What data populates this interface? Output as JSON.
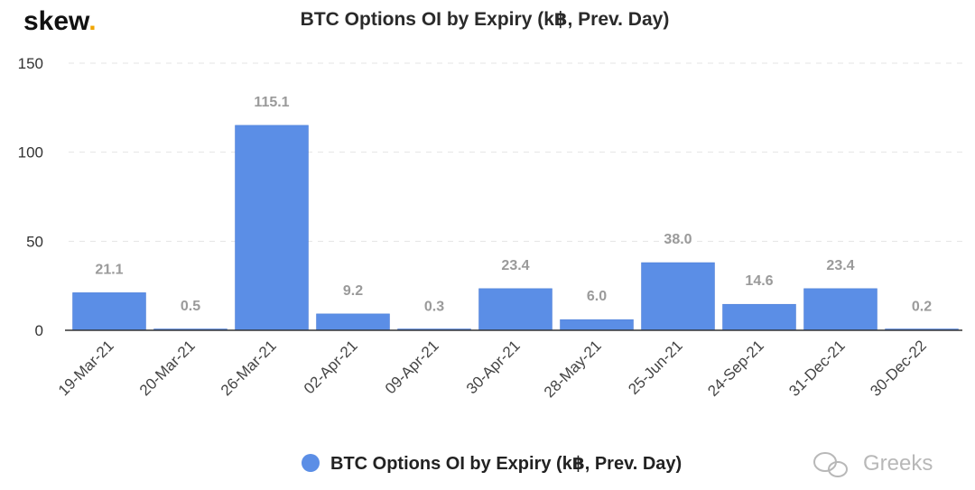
{
  "brand": {
    "logo_text": "skew",
    "logo_dot": ".",
    "logo_dot_color": "#f0a500"
  },
  "watermark": {
    "text": "Greeks",
    "icon": "wechat-icon"
  },
  "colors": {
    "bar": "#5b8ee6",
    "bar_dark": "#4a7bd4"
  },
  "chart_data": {
    "type": "bar",
    "title": "BTC Options OI by Expiry (k฿, Prev. Day)",
    "xlabel": "",
    "ylabel": "",
    "ylim": [
      0,
      150
    ],
    "yticks": [
      0,
      50,
      100,
      150
    ],
    "grid": true,
    "legend_position": "bottom",
    "categories": [
      "19-Mar-21",
      "20-Mar-21",
      "26-Mar-21",
      "02-Apr-21",
      "09-Apr-21",
      "30-Apr-21",
      "28-May-21",
      "25-Jun-21",
      "24-Sep-21",
      "31-Dec-21",
      "30-Dec-22"
    ],
    "series": [
      {
        "name": "BTC Options OI by Expiry (k฿, Prev. Day)",
        "values": [
          21.1,
          0.5,
          115.1,
          9.2,
          0.3,
          23.4,
          6.0,
          38.0,
          14.6,
          23.4,
          0.2
        ],
        "labels": [
          "21.1",
          "0.5",
          "115.1",
          "9.2",
          "0.3",
          "23.4",
          "6.0",
          "38.0",
          "14.6",
          "23.4",
          "0.2"
        ]
      }
    ]
  }
}
